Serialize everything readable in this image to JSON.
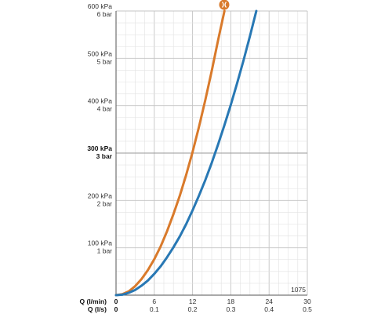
{
  "chart_data": {
    "type": "line",
    "title": "",
    "xlabel": "",
    "ylabel": "",
    "x_axis_primary": {
      "label": "Q (l/min)",
      "ticks": [
        "0",
        "6",
        "12",
        "18",
        "24",
        "30"
      ],
      "range": [
        0,
        30
      ]
    },
    "x_axis_secondary": {
      "label": "Q (l/s)",
      "ticks": [
        "0",
        "0.1",
        "0.2",
        "0.3",
        "0.4",
        "0.5"
      ],
      "range": [
        0,
        0.5
      ]
    },
    "y_axis": {
      "range": [
        0,
        600
      ],
      "ticks": [
        {
          "value": 100,
          "kpa": "100 kPa",
          "bar": "1 bar",
          "bold": false
        },
        {
          "value": 200,
          "kpa": "200 kPa",
          "bar": "2 bar",
          "bold": false
        },
        {
          "value": 300,
          "kpa": "300 kPa",
          "bar": "3 bar",
          "bold": true
        },
        {
          "value": 400,
          "kpa": "400 kPa",
          "bar": "4 bar",
          "bold": false
        },
        {
          "value": 500,
          "kpa": "500 kPa",
          "bar": "5 bar",
          "bold": false
        },
        {
          "value": 600,
          "kpa": "600 kPa",
          "bar": "6 bar",
          "bold": false
        }
      ]
    },
    "grid": true,
    "series": [
      {
        "color": "#d97a2b",
        "x": [
          0,
          1,
          2,
          3,
          4,
          5,
          6,
          7,
          8,
          9,
          10,
          11,
          12,
          13,
          14,
          15,
          16,
          17
        ],
        "y": [
          0,
          2,
          8,
          19,
          34,
          53,
          76,
          103,
          135,
          171,
          210,
          254,
          302,
          355,
          412,
          473,
          538,
          600
        ]
      },
      {
        "color": "#2878b4",
        "x": [
          0,
          1,
          2,
          3,
          4,
          5,
          6,
          7,
          8,
          9,
          10,
          11,
          12,
          13,
          14,
          15,
          16,
          17,
          18,
          19,
          20,
          21,
          22
        ],
        "y": [
          0,
          1,
          5,
          11,
          20,
          31,
          45,
          61,
          80,
          101,
          124,
          150,
          179,
          210,
          243,
          279,
          318,
          359,
          402,
          448,
          496,
          547,
          600
        ]
      }
    ],
    "marker_icon": "hansgrohe-logo-icon",
    "marker_color": "#d97a2b",
    "corner_label": "1075"
  }
}
